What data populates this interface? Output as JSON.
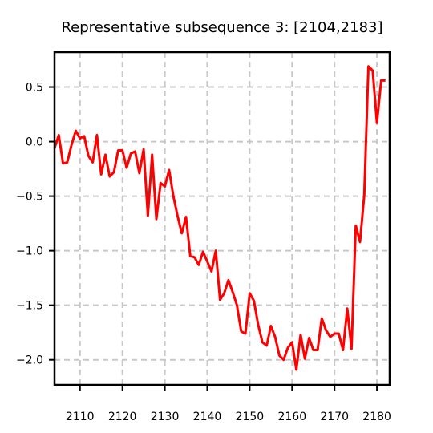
{
  "chart_data": {
    "type": "line",
    "title": "Representative subsequence 3: [2104,2183]",
    "xlabel": "",
    "ylabel": "",
    "xlim": [
      2104,
      2183
    ],
    "ylim": [
      -2.23,
      0.82
    ],
    "xticks": [
      2110,
      2120,
      2130,
      2140,
      2150,
      2160,
      2170,
      2180
    ],
    "yticks": [
      0.5,
      0.0,
      -0.5,
      -1.0,
      -1.5,
      -2.0
    ],
    "ytick_labels": [
      "0.5",
      "0.0",
      "−0.5",
      "−1.0",
      "−1.5",
      "−2.0"
    ],
    "grid": true,
    "line_color": "#ff0000",
    "series": [
      {
        "x": [
          2104,
          2105,
          2106,
          2107,
          2108,
          2109,
          2110,
          2111,
          2112,
          2113,
          2114,
          2115,
          2116,
          2117,
          2118,
          2119,
          2120,
          2121,
          2122,
          2123,
          2124,
          2125,
          2126,
          2127,
          2128,
          2129,
          2130,
          2131,
          2132,
          2133,
          2134,
          2135,
          2136,
          2137,
          2138,
          2139,
          2140,
          2141,
          2142,
          2143,
          2144,
          2145,
          2146,
          2147,
          2148,
          2149,
          2150,
          2151,
          2152,
          2153,
          2154,
          2155,
          2156,
          2157,
          2158,
          2159,
          2160,
          2161,
          2162,
          2163,
          2164,
          2165,
          2166,
          2167,
          2168,
          2169,
          2170,
          2171,
          2172,
          2173,
          2174,
          2175,
          2176,
          2177,
          2178,
          2179,
          2180,
          2181,
          2182
        ],
        "values": [
          -0.06,
          0.06,
          -0.2,
          -0.19,
          -0.03,
          0.1,
          0.03,
          0.05,
          -0.13,
          -0.19,
          0.06,
          -0.3,
          -0.12,
          -0.32,
          -0.28,
          -0.08,
          -0.08,
          -0.24,
          -0.11,
          -0.09,
          -0.29,
          -0.07,
          -0.68,
          -0.12,
          -0.71,
          -0.38,
          -0.41,
          -0.26,
          -0.5,
          -0.68,
          -0.84,
          -0.69,
          -1.05,
          -1.06,
          -1.13,
          -1.01,
          -1.1,
          -1.19,
          -1.0,
          -1.45,
          -1.39,
          -1.27,
          -1.38,
          -1.5,
          -1.74,
          -1.76,
          -1.39,
          -1.46,
          -1.68,
          -1.84,
          -1.87,
          -1.69,
          -1.79,
          -1.96,
          -2.0,
          -1.89,
          -1.84,
          -2.09,
          -1.77,
          -1.99,
          -1.8,
          -1.91,
          -1.91,
          -1.62,
          -1.73,
          -1.79,
          -1.76,
          -1.76,
          -1.91,
          -1.53,
          -1.9,
          -0.77,
          -0.92,
          -0.49,
          0.69,
          0.65,
          0.17,
          0.56,
          0.56
        ]
      }
    ]
  }
}
